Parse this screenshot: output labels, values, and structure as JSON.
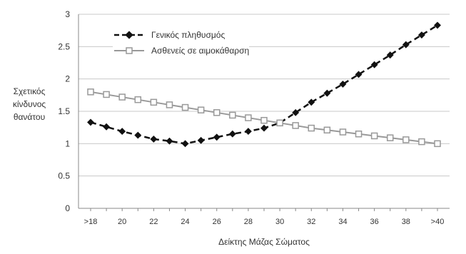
{
  "chart_data": {
    "type": "line",
    "xlabel": "Δείκτης Μάζας Σώματος",
    "ylabel": [
      "Σχετικός",
      "κίνδυνος",
      "θανάτου"
    ],
    "categories": [
      ">18",
      "",
      "20",
      "",
      "22",
      "",
      "24",
      "",
      "26",
      "",
      "28",
      "",
      "30",
      "",
      "32",
      "",
      "34",
      "",
      "36",
      "",
      "38",
      "",
      ">40"
    ],
    "ylim": [
      0,
      3
    ],
    "yticks": [
      "0",
      "0.5",
      "1",
      "1.5",
      "2",
      "2.5",
      "3"
    ],
    "grid": true,
    "legend_position": "top-left",
    "series": [
      {
        "name": "Γενικός πληθυσμός",
        "style": "dashed",
        "marker": "filled-diamond",
        "color": "#111111",
        "values": [
          1.33,
          1.26,
          1.19,
          1.13,
          1.07,
          1.04,
          1.0,
          1.05,
          1.1,
          1.15,
          1.19,
          1.24,
          1.32,
          1.48,
          1.64,
          1.78,
          1.92,
          2.07,
          2.22,
          2.37,
          2.53,
          2.68,
          2.83
        ]
      },
      {
        "name": "Ασθενείς σε αιμοκάθαρση",
        "style": "solid",
        "marker": "hollow-square",
        "color": "#999999",
        "values": [
          1.8,
          1.76,
          1.72,
          1.68,
          1.64,
          1.6,
          1.56,
          1.52,
          1.48,
          1.44,
          1.4,
          1.36,
          1.32,
          1.28,
          1.24,
          1.21,
          1.18,
          1.15,
          1.12,
          1.09,
          1.06,
          1.03,
          1.0
        ]
      }
    ]
  }
}
